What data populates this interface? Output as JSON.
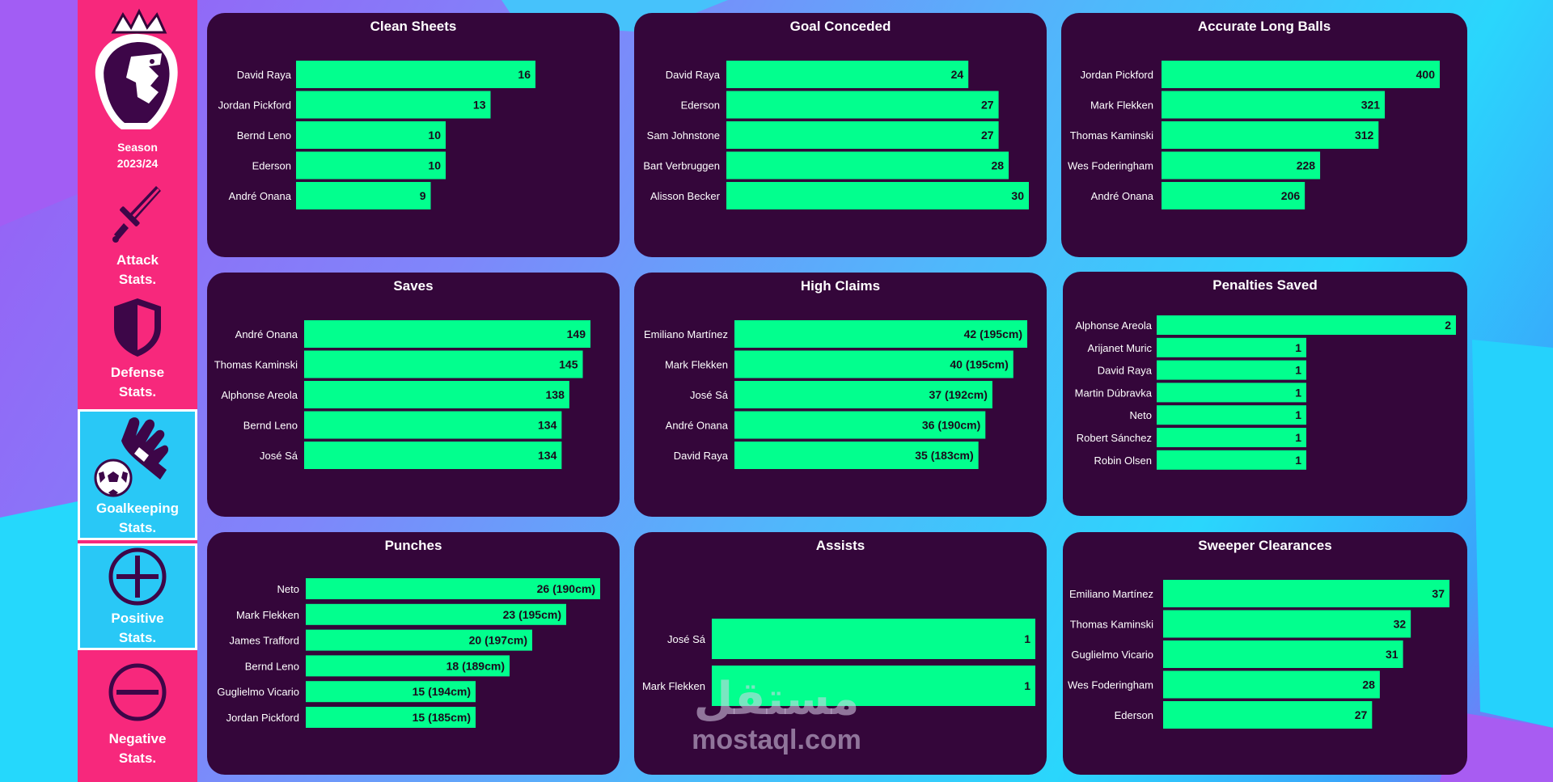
{
  "sidebar": {
    "season_label": "Season",
    "season_value": "2023/24",
    "items": [
      {
        "line1": "Attack",
        "line2": "Stats.",
        "icon": "sword-icon"
      },
      {
        "line1": "Defense",
        "line2": "Stats.",
        "icon": "shield-icon"
      },
      {
        "line1": "Goalkeeping",
        "line2": "Stats.",
        "icon": "goalkeeper-glove-icon"
      },
      {
        "line1": "Positive",
        "line2": "Stats.",
        "icon": "plus-circle-icon"
      },
      {
        "line1": "Negative",
        "line2": "Stats.",
        "icon": "minus-circle-icon"
      }
    ]
  },
  "colors": {
    "bar": "#02ff8e",
    "panel": "#34063a",
    "sidebar": "#f7287c",
    "active": "#29c8f6"
  },
  "watermark": {
    "arabic": "مستقل",
    "latin": "mostaql.com"
  },
  "chart_data": [
    {
      "type": "bar",
      "orientation": "horizontal",
      "title": "Clean Sheets",
      "categories": [
        "David Raya",
        "Jordan Pickford",
        "Bernd Leno",
        "Ederson",
        "André Onana"
      ],
      "values": [
        16,
        13,
        10,
        10,
        9
      ],
      "labels": [
        "16",
        "13",
        "10",
        "10",
        "9"
      ],
      "xlim": [
        0,
        16
      ]
    },
    {
      "type": "bar",
      "orientation": "horizontal",
      "title": "Goal Conceded",
      "categories": [
        "David Raya",
        "Ederson",
        "Sam Johnstone",
        "Bart Verbruggen",
        "Alisson Becker"
      ],
      "values": [
        24,
        27,
        27,
        28,
        30
      ],
      "labels": [
        "24",
        "27",
        "27",
        "28",
        "30"
      ],
      "xlim": [
        0,
        30
      ]
    },
    {
      "type": "bar",
      "orientation": "horizontal",
      "title": "Accurate Long Balls",
      "categories": [
        "Jordan Pickford",
        "Mark Flekken",
        "Thomas Kaminski",
        "Wes Foderingham",
        "André Onana"
      ],
      "values": [
        400,
        321,
        312,
        228,
        206
      ],
      "labels": [
        "400",
        "321",
        "312",
        "228",
        "206"
      ],
      "xlim": [
        0,
        400
      ]
    },
    {
      "type": "bar",
      "orientation": "horizontal",
      "title": "Saves",
      "categories": [
        "André Onana",
        "Thomas Kaminski",
        "Alphonse Areola",
        "Bernd Leno",
        "José Sá"
      ],
      "values": [
        149,
        145,
        138,
        134,
        134
      ],
      "labels": [
        "149",
        "145",
        "138",
        "134",
        "134"
      ],
      "xlim": [
        0,
        149
      ]
    },
    {
      "type": "bar",
      "orientation": "horizontal",
      "title": "High Claims",
      "categories": [
        "Emiliano Martínez",
        "Mark Flekken",
        "José Sá",
        "André Onana",
        "David Raya"
      ],
      "values": [
        42,
        40,
        37,
        36,
        35
      ],
      "labels": [
        "42 (195cm)",
        "40 (195cm)",
        "37 (192cm)",
        "36 (190cm)",
        "35 (183cm)"
      ],
      "xlim": [
        0,
        42
      ]
    },
    {
      "type": "bar",
      "orientation": "horizontal",
      "title": "Penalties Saved",
      "categories": [
        "Alphonse Areola",
        "Arijanet Muric",
        "David Raya",
        "Martin Dúbravka",
        "Neto",
        "Robert Sánchez",
        "Robin Olsen"
      ],
      "values": [
        2,
        1,
        1,
        1,
        1,
        1,
        1
      ],
      "labels": [
        "2",
        "1",
        "1",
        "1",
        "1",
        "1",
        "1"
      ],
      "xlim": [
        0,
        2
      ]
    },
    {
      "type": "bar",
      "orientation": "horizontal",
      "title": "Punches",
      "categories": [
        "Neto",
        "Mark Flekken",
        "James Trafford",
        "Bernd Leno",
        "Guglielmo Vicario",
        "Jordan Pickford"
      ],
      "values": [
        26,
        23,
        20,
        18,
        15,
        15
      ],
      "labels": [
        "26 (190cm)",
        "23 (195cm)",
        "20 (197cm)",
        "18 (189cm)",
        "15 (194cm)",
        "15 (185cm)"
      ],
      "xlim": [
        0,
        26
      ]
    },
    {
      "type": "bar",
      "orientation": "horizontal",
      "title": "Assists",
      "categories": [
        "José Sá",
        "Mark Flekken"
      ],
      "values": [
        1,
        1
      ],
      "labels": [
        "1",
        "1"
      ],
      "xlim": [
        0,
        1
      ]
    },
    {
      "type": "bar",
      "orientation": "horizontal",
      "title": "Sweeper Clearances",
      "categories": [
        "Emiliano Martínez",
        "Thomas Kaminski",
        "Guglielmo Vicario",
        "Wes Foderingham",
        "Ederson"
      ],
      "values": [
        37,
        32,
        31,
        28,
        27
      ],
      "labels": [
        "37",
        "32",
        "31",
        "28",
        "27"
      ],
      "xlim": [
        0,
        37
      ]
    }
  ]
}
